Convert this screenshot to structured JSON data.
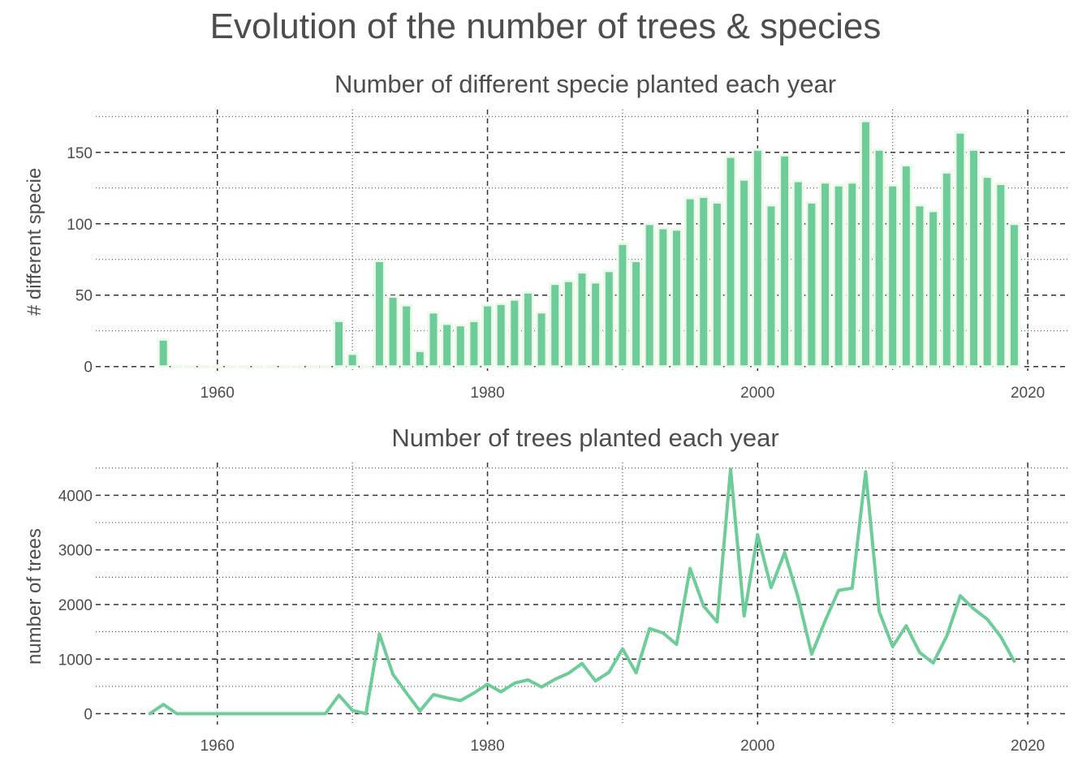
{
  "title": "Evolution of the number of trees & species",
  "colors": {
    "accent": "#6ccd98",
    "bar_outline": "#eef9ec",
    "grid": "#333333",
    "text": "#4d4d4d"
  },
  "chart_data": [
    {
      "type": "bar",
      "title": "Number of different specie planted each year",
      "xlabel": "",
      "ylabel": "# different specie",
      "xlim": [
        1951,
        2023
      ],
      "ylim": [
        -3,
        180
      ],
      "xticks": [
        1960,
        1980,
        2000,
        2020
      ],
      "yticks": [
        0,
        50,
        100,
        150
      ],
      "grid": true,
      "x": [
        1956,
        1957,
        1958,
        1959,
        1960,
        1961,
        1962,
        1963,
        1964,
        1965,
        1966,
        1967,
        1968,
        1969,
        1970,
        1971,
        1972,
        1973,
        1974,
        1975,
        1976,
        1977,
        1978,
        1979,
        1980,
        1981,
        1982,
        1983,
        1984,
        1985,
        1986,
        1987,
        1988,
        1989,
        1990,
        1991,
        1992,
        1993,
        1994,
        1995,
        1996,
        1997,
        1998,
        1999,
        2000,
        2001,
        2002,
        2003,
        2004,
        2005,
        2006,
        2007,
        2008,
        2009,
        2010,
        2011,
        2012,
        2013,
        2014,
        2015,
        2016,
        2017,
        2018,
        2019
      ],
      "values": [
        19,
        0,
        0,
        0,
        0,
        0,
        0,
        0,
        0,
        0,
        0,
        0,
        0,
        32,
        9,
        0,
        74,
        49,
        43,
        11,
        38,
        30,
        29,
        32,
        43,
        44,
        47,
        52,
        38,
        58,
        60,
        66,
        59,
        67,
        86,
        74,
        100,
        97,
        96,
        118,
        119,
        115,
        147,
        131,
        152,
        113,
        148,
        130,
        115,
        129,
        127,
        129,
        172,
        152,
        127,
        141,
        113,
        109,
        136,
        164,
        152,
        133,
        128,
        100
      ]
    },
    {
      "type": "line",
      "title": "Number of trees planted each year",
      "xlabel": "",
      "ylabel": "number of trees",
      "xlim": [
        1951,
        2023
      ],
      "ylim": [
        -200,
        4600
      ],
      "xticks": [
        1960,
        1980,
        2000,
        2020
      ],
      "yticks": [
        0,
        1000,
        2000,
        3000,
        4000
      ],
      "grid": true,
      "x": [
        1955,
        1956,
        1957,
        1958,
        1959,
        1960,
        1961,
        1962,
        1963,
        1964,
        1965,
        1966,
        1967,
        1968,
        1969,
        1970,
        1971,
        1972,
        1973,
        1974,
        1975,
        1976,
        1977,
        1978,
        1979,
        1980,
        1981,
        1982,
        1983,
        1984,
        1985,
        1986,
        1987,
        1988,
        1989,
        1990,
        1991,
        1992,
        1993,
        1994,
        1995,
        1996,
        1997,
        1998,
        1999,
        2000,
        2001,
        2002,
        2003,
        2004,
        2005,
        2006,
        2007,
        2008,
        2009,
        2010,
        2011,
        2012,
        2013,
        2014,
        2015,
        2016,
        2017,
        2018,
        2019
      ],
      "values": [
        0,
        170,
        0,
        0,
        0,
        0,
        0,
        0,
        0,
        0,
        0,
        0,
        0,
        0,
        340,
        60,
        0,
        1460,
        720,
        380,
        50,
        350,
        290,
        240,
        380,
        540,
        400,
        560,
        620,
        490,
        630,
        740,
        920,
        600,
        760,
        1190,
        750,
        1560,
        1480,
        1270,
        2660,
        1970,
        1680,
        4480,
        1790,
        3280,
        2310,
        2950,
        2130,
        1090,
        1700,
        2260,
        2300,
        4430,
        1870,
        1230,
        1610,
        1120,
        930,
        1420,
        2160,
        1920,
        1730,
        1410,
        960
      ]
    }
  ]
}
